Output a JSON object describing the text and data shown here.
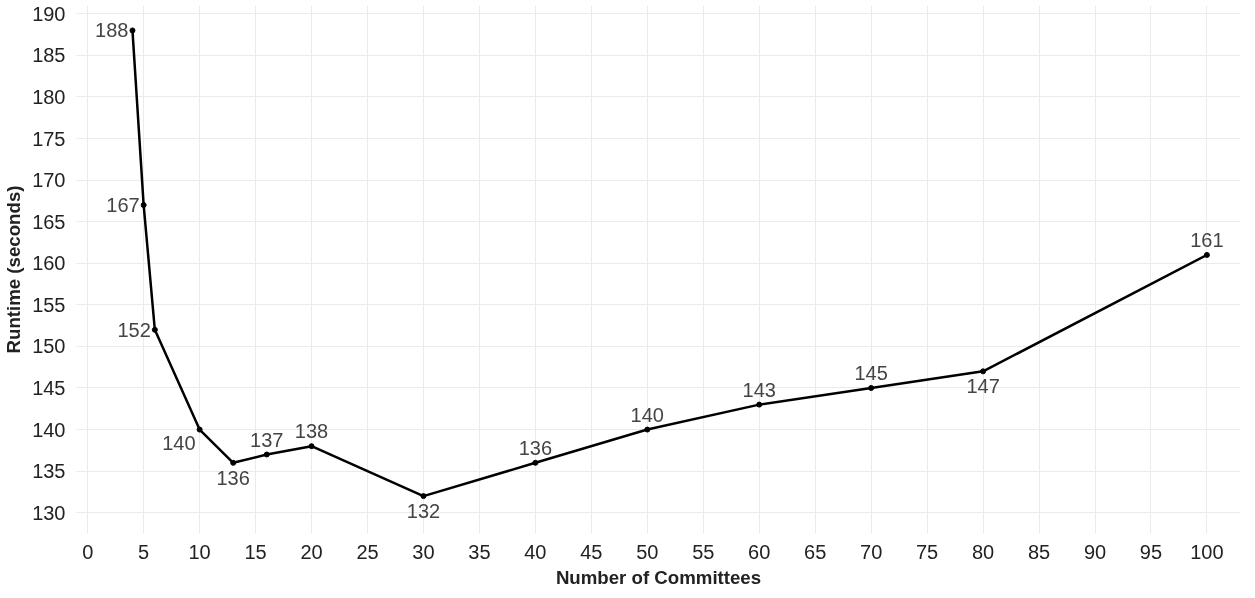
{
  "chart_data": {
    "type": "line",
    "xlabel": "Number of Committees",
    "ylabel": "Runtime (seconds)",
    "x": [
      4,
      5,
      6,
      10,
      13,
      16,
      20,
      30,
      40,
      50,
      60,
      70,
      80,
      100
    ],
    "series": [
      {
        "color": "#000000",
        "values": [
          188,
          167,
          152,
          140,
          136,
          137,
          138,
          132,
          136,
          140,
          143,
          145,
          147,
          161
        ]
      }
    ],
    "xlim": [
      -1,
      103
    ],
    "xticks": [
      0,
      5,
      10,
      15,
      20,
      25,
      30,
      35,
      40,
      45,
      50,
      55,
      60,
      65,
      70,
      75,
      80,
      85,
      90,
      95,
      100
    ],
    "ylim": [
      127.5,
      191
    ],
    "yticks": [
      130,
      135,
      140,
      145,
      150,
      155,
      160,
      165,
      170,
      175,
      180,
      185,
      190
    ],
    "grid": true,
    "marker": "circle",
    "line_style": "solid",
    "data_labels": true
  }
}
